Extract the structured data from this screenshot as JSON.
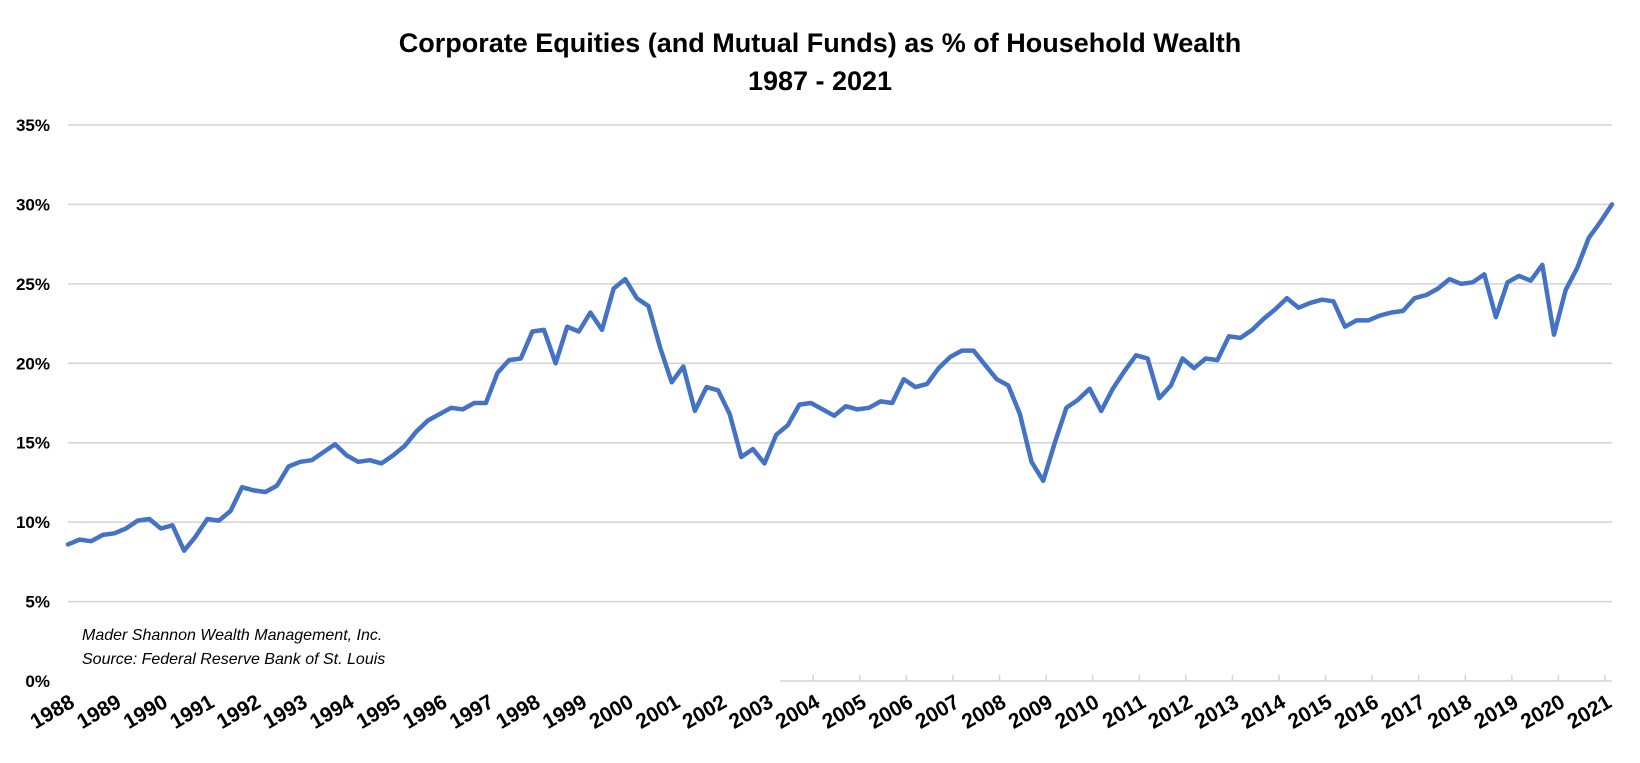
{
  "chart_data": {
    "type": "line",
    "title": "Corporate Equities (and Mutual Funds) as % of Household Wealth",
    "subtitle": "1987 - 2021",
    "xlabel": "",
    "ylabel": "",
    "ylim": [
      0,
      35
    ],
    "y_ticks": [
      "0%",
      "5%",
      "10%",
      "15%",
      "20%",
      "25%",
      "30%",
      "35%"
    ],
    "x_ticks": [
      "1988",
      "1989",
      "1990",
      "1991",
      "1992",
      "1993",
      "1994",
      "1995",
      "1996",
      "1997",
      "1998",
      "1999",
      "2000",
      "2001",
      "2002",
      "2003",
      "2004",
      "2005",
      "2006",
      "2007",
      "2008",
      "2009",
      "2010",
      "2011",
      "2012",
      "2013",
      "2014",
      "2015",
      "2016",
      "2017",
      "2018",
      "2019",
      "2020",
      "2021"
    ],
    "grid": true,
    "legend": "none",
    "line_color": "#4472C4",
    "annotations": [
      "Mader Shannon Wealth Management, Inc.",
      "Source: Federal Reserve Bank of St. Louis"
    ],
    "series": [
      {
        "values": [
          8.6,
          8.9,
          8.8,
          9.2,
          9.3,
          9.6,
          10.1,
          10.2,
          9.6,
          9.8,
          8.2,
          9.1,
          10.2,
          10.1,
          10.7,
          12.2,
          12.0,
          11.9,
          12.3,
          13.5,
          13.8,
          13.9,
          14.4,
          14.9,
          14.2,
          13.8,
          13.9,
          13.7,
          14.2,
          14.8,
          15.7,
          16.4,
          16.8,
          17.2,
          17.1,
          17.5,
          17.5,
          19.4,
          20.2,
          20.3,
          22.0,
          22.1,
          20.0,
          22.3,
          22.0,
          23.2,
          22.1,
          24.7,
          25.3,
          24.1,
          23.6,
          21.0,
          18.8,
          19.8,
          17.0,
          18.5,
          18.3,
          16.8,
          14.1,
          14.6,
          13.7,
          15.5,
          16.1,
          17.4,
          17.5,
          17.1,
          16.7,
          17.3,
          17.1,
          17.2,
          17.6,
          17.5,
          19.0,
          18.5,
          18.7,
          19.7,
          20.4,
          20.8,
          20.8,
          19.9,
          19.0,
          18.6,
          16.8,
          13.8,
          12.6,
          15.0,
          17.2,
          17.7,
          18.4,
          17.0,
          18.4,
          19.5,
          20.5,
          20.3,
          17.8,
          18.6,
          20.3,
          19.7,
          20.3,
          20.2,
          21.7,
          21.6,
          22.1,
          22.8,
          23.4,
          24.1,
          23.5,
          23.8,
          24.0,
          23.9,
          22.3,
          22.7,
          22.7,
          23.0,
          23.2,
          23.3,
          24.1,
          24.3,
          24.7,
          25.3,
          25.0,
          25.1,
          25.6,
          22.9,
          25.1,
          25.5,
          25.2,
          26.2,
          21.8,
          24.6,
          26.0,
          27.9,
          28.9,
          30.0
        ]
      }
    ]
  }
}
